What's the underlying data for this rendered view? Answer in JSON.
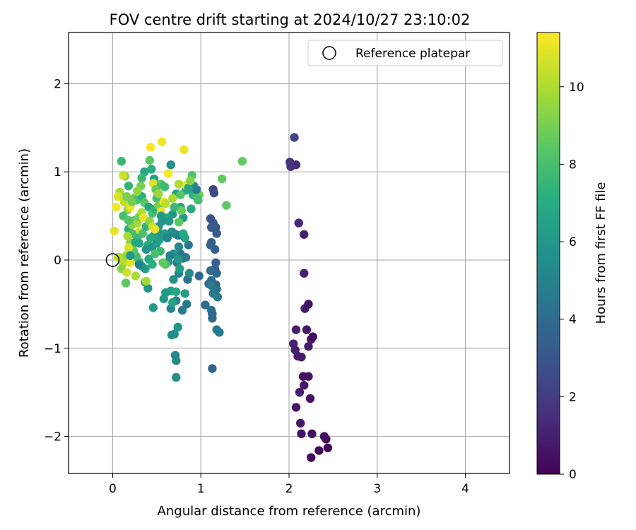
{
  "chart_data": {
    "type": "scatter",
    "title": "FOV centre drift starting at 2024/10/27 23:10:02",
    "xlabel": "Angular distance from reference (arcmin)",
    "ylabel": "Rotation from reference (arcmin)",
    "xlim": [
      -0.5,
      4.5
    ],
    "ylim": [
      -2.42,
      2.58
    ],
    "xticks": [
      0,
      1,
      2,
      3,
      4
    ],
    "xtick_labels": [
      "0",
      "1",
      "2",
      "3",
      "4"
    ],
    "yticks": [
      -2,
      -1,
      0,
      1,
      2
    ],
    "ytick_labels": [
      "−2",
      "−1",
      "0",
      "1",
      "2"
    ],
    "grid": true,
    "legend": {
      "placement": "top-right",
      "entries": [
        {
          "label": "Reference platepar",
          "marker": "open-circle"
        }
      ]
    },
    "reference_point": {
      "x": 0,
      "y": 0
    },
    "colorbar": {
      "label": "Hours from first FF file",
      "colormap": "viridis",
      "range": [
        0,
        11.4
      ],
      "ticks": [
        0,
        2,
        4,
        6,
        8,
        10
      ],
      "tick_labels": [
        "0",
        "2",
        "4",
        "6",
        "8",
        "10"
      ]
    },
    "points": [
      {
        "x": 2.44,
        "y": -2.13,
        "c": 0.1
      },
      {
        "x": 2.34,
        "y": -2.16,
        "c": 0.2
      },
      {
        "x": 2.42,
        "y": -2.03,
        "c": 0.3
      },
      {
        "x": 2.4,
        "y": -2.0,
        "c": 0.4
      },
      {
        "x": 2.25,
        "y": -2.24,
        "c": 0.3
      },
      {
        "x": 2.26,
        "y": -1.97,
        "c": 0.5
      },
      {
        "x": 2.14,
        "y": -1.97,
        "c": 0.6
      },
      {
        "x": 2.13,
        "y": -1.85,
        "c": 0.7
      },
      {
        "x": 2.08,
        "y": -1.67,
        "c": 0.6
      },
      {
        "x": 2.24,
        "y": -1.57,
        "c": 0.5
      },
      {
        "x": 2.12,
        "y": -1.5,
        "c": 0.8
      },
      {
        "x": 2.17,
        "y": -1.42,
        "c": 0.7
      },
      {
        "x": 2.22,
        "y": -1.32,
        "c": 0.6
      },
      {
        "x": 2.16,
        "y": -1.32,
        "c": 0.5
      },
      {
        "x": 2.14,
        "y": -1.1,
        "c": 0.9
      },
      {
        "x": 2.1,
        "y": -1.09,
        "c": 0.8
      },
      {
        "x": 2.07,
        "y": -1.02,
        "c": 1.0
      },
      {
        "x": 2.05,
        "y": -0.95,
        "c": 1.1
      },
      {
        "x": 2.22,
        "y": -0.98,
        "c": 0.9
      },
      {
        "x": 2.25,
        "y": -0.9,
        "c": 0.8
      },
      {
        "x": 2.27,
        "y": -0.87,
        "c": 0.4
      },
      {
        "x": 2.08,
        "y": -0.79,
        "c": 1.0
      },
      {
        "x": 2.2,
        "y": -0.79,
        "c": 0.7
      },
      {
        "x": 2.18,
        "y": -0.55,
        "c": 0.9
      },
      {
        "x": 2.22,
        "y": -0.5,
        "c": 0.6
      },
      {
        "x": 2.17,
        "y": -0.15,
        "c": 1.0
      },
      {
        "x": 2.17,
        "y": 0.29,
        "c": 1.1
      },
      {
        "x": 2.11,
        "y": 0.42,
        "c": 1.2
      },
      {
        "x": 2.08,
        "y": 1.08,
        "c": 1.4
      },
      {
        "x": 2.02,
        "y": 1.06,
        "c": 1.5
      },
      {
        "x": 2.01,
        "y": 1.11,
        "c": 1.6
      },
      {
        "x": 2.06,
        "y": 1.39,
        "c": 2.3
      },
      {
        "x": 1.14,
        "y": 0.8,
        "c": 2.4
      },
      {
        "x": 1.15,
        "y": 0.76,
        "c": 2.6
      },
      {
        "x": 1.11,
        "y": 0.47,
        "c": 2.8
      },
      {
        "x": 1.14,
        "y": 0.42,
        "c": 3.0
      },
      {
        "x": 1.17,
        "y": 0.37,
        "c": 3.1
      },
      {
        "x": 1.18,
        "y": 0.3,
        "c": 3.2
      },
      {
        "x": 1.12,
        "y": 0.37,
        "c": 3.3
      },
      {
        "x": 1.12,
        "y": 0.2,
        "c": 3.4
      },
      {
        "x": 1.11,
        "y": 0.17,
        "c": 3.5
      },
      {
        "x": 1.16,
        "y": 0.12,
        "c": 3.6
      },
      {
        "x": 1.17,
        "y": -0.03,
        "c": 3.7
      },
      {
        "x": 1.16,
        "y": -0.1,
        "c": 3.3
      },
      {
        "x": 1.18,
        "y": -0.15,
        "c": 3.8
      },
      {
        "x": 1.11,
        "y": -0.12,
        "c": 3.9
      },
      {
        "x": 1.09,
        "y": -0.27,
        "c": 4.0
      },
      {
        "x": 1.12,
        "y": -0.23,
        "c": 4.1
      },
      {
        "x": 1.17,
        "y": -0.28,
        "c": 3.6
      },
      {
        "x": 1.18,
        "y": -0.33,
        "c": 4.2
      },
      {
        "x": 1.14,
        "y": -0.38,
        "c": 4.3
      },
      {
        "x": 1.19,
        "y": -0.42,
        "c": 4.8
      },
      {
        "x": 1.12,
        "y": -0.29,
        "c": 4.6
      },
      {
        "x": 1.05,
        "y": -0.51,
        "c": 4.0
      },
      {
        "x": 1.12,
        "y": -0.57,
        "c": 4.2
      },
      {
        "x": 1.13,
        "y": -0.61,
        "c": 3.8
      },
      {
        "x": 1.13,
        "y": -0.66,
        "c": 3.9
      },
      {
        "x": 1.18,
        "y": -0.79,
        "c": 4.6
      },
      {
        "x": 1.21,
        "y": -0.82,
        "c": 4.8
      },
      {
        "x": 1.13,
        "y": -1.23,
        "c": 3.6
      },
      {
        "x": 0.98,
        "y": -0.18,
        "c": 3.8
      },
      {
        "x": 0.85,
        "y": -0.22,
        "c": 4.3
      },
      {
        "x": 0.84,
        "y": -0.5,
        "c": 4.6
      },
      {
        "x": 0.79,
        "y": -0.57,
        "c": 4.7
      },
      {
        "x": 0.72,
        "y": -0.46,
        "c": 4.9
      },
      {
        "x": 0.66,
        "y": -0.55,
        "c": 5.2
      },
      {
        "x": 0.67,
        "y": -0.85,
        "c": 5.5
      },
      {
        "x": 0.7,
        "y": -0.84,
        "c": 5.6
      },
      {
        "x": 0.74,
        "y": -0.76,
        "c": 6.0
      },
      {
        "x": 0.71,
        "y": -1.08,
        "c": 5.2
      },
      {
        "x": 0.72,
        "y": -1.14,
        "c": 5.4
      },
      {
        "x": 0.72,
        "y": -1.33,
        "c": 5.5
      },
      {
        "x": 0.46,
        "y": -0.54,
        "c": 6.2
      },
      {
        "x": 0.37,
        "y": -0.25,
        "c": 5.6
      },
      {
        "x": 0.4,
        "y": -0.32,
        "c": 5.8
      },
      {
        "x": 0.58,
        "y": -0.44,
        "c": 6.0
      },
      {
        "x": 0.66,
        "y": -0.35,
        "c": 6.4
      },
      {
        "x": 0.72,
        "y": -0.36,
        "c": 6.7
      },
      {
        "x": 0.69,
        "y": -0.22,
        "c": 5.8
      },
      {
        "x": 0.75,
        "y": -0.15,
        "c": 5.0
      },
      {
        "x": 0.73,
        "y": -0.03,
        "c": 4.5
      },
      {
        "x": 0.8,
        "y": 0.02,
        "c": 4.2
      },
      {
        "x": 0.77,
        "y": 0.07,
        "c": 4.4
      },
      {
        "x": 0.86,
        "y": 0.17,
        "c": 4.5
      },
      {
        "x": 0.83,
        "y": 0.03,
        "c": 4.8
      },
      {
        "x": 0.74,
        "y": 0.28,
        "c": 5.0
      },
      {
        "x": 0.7,
        "y": 0.3,
        "c": 5.2
      },
      {
        "x": 0.67,
        "y": 0.32,
        "c": 5.5
      },
      {
        "x": 0.69,
        "y": 0.07,
        "c": 5.8
      },
      {
        "x": 0.68,
        "y": 0.52,
        "c": 6.0
      },
      {
        "x": 0.8,
        "y": 0.48,
        "c": 6.2
      },
      {
        "x": 0.77,
        "y": 0.6,
        "c": 6.6
      },
      {
        "x": 0.89,
        "y": 0.58,
        "c": 6.9
      },
      {
        "x": 0.91,
        "y": 0.74,
        "c": 7.2
      },
      {
        "x": 0.95,
        "y": 0.72,
        "c": 7.5
      },
      {
        "x": 0.97,
        "y": 0.68,
        "c": 7.8
      },
      {
        "x": 0.9,
        "y": 0.96,
        "c": 8.2
      },
      {
        "x": 0.83,
        "y": 0.79,
        "c": 7.0
      },
      {
        "x": 0.66,
        "y": 1.08,
        "c": 5.8
      },
      {
        "x": 0.5,
        "y": 0.84,
        "c": 6.2
      },
      {
        "x": 0.47,
        "y": 0.92,
        "c": 6.5
      },
      {
        "x": 0.44,
        "y": 1.03,
        "c": 7.0
      },
      {
        "x": 0.42,
        "y": 1.13,
        "c": 8.5
      },
      {
        "x": 0.36,
        "y": 1.0,
        "c": 6.8
      },
      {
        "x": 0.33,
        "y": 0.93,
        "c": 7.6
      },
      {
        "x": 0.1,
        "y": 1.12,
        "c": 7.6
      },
      {
        "x": 0.14,
        "y": 0.95,
        "c": 9.3
      },
      {
        "x": 0.12,
        "y": 0.96,
        "c": 10.5
      },
      {
        "x": 0.18,
        "y": 0.84,
        "c": 7.4
      },
      {
        "x": 0.08,
        "y": 0.77,
        "c": 9.8
      },
      {
        "x": 0.06,
        "y": 0.72,
        "c": 10.8
      },
      {
        "x": 0.04,
        "y": 0.6,
        "c": 11.2
      },
      {
        "x": 0.13,
        "y": 0.66,
        "c": 10.3
      },
      {
        "x": 0.17,
        "y": 0.57,
        "c": 9.5
      },
      {
        "x": 0.2,
        "y": 0.6,
        "c": 11.1
      },
      {
        "x": 0.24,
        "y": 0.7,
        "c": 8.8
      },
      {
        "x": 0.27,
        "y": 0.68,
        "c": 8.0
      },
      {
        "x": 0.33,
        "y": 0.72,
        "c": 7.2
      },
      {
        "x": 0.36,
        "y": 0.65,
        "c": 8.4
      },
      {
        "x": 0.41,
        "y": 0.6,
        "c": 6.7
      },
      {
        "x": 0.45,
        "y": 0.53,
        "c": 8.0
      },
      {
        "x": 0.48,
        "y": 0.58,
        "c": 7.3
      },
      {
        "x": 0.5,
        "y": 0.7,
        "c": 7.9
      },
      {
        "x": 0.52,
        "y": 0.62,
        "c": 9.0
      },
      {
        "x": 0.55,
        "y": 0.55,
        "c": 11.0
      },
      {
        "x": 0.58,
        "y": 0.66,
        "c": 11.2
      },
      {
        "x": 0.6,
        "y": 0.64,
        "c": 10.2
      },
      {
        "x": 0.63,
        "y": 0.98,
        "c": 11.3
      },
      {
        "x": 0.56,
        "y": 1.34,
        "c": 11.2
      },
      {
        "x": 0.43,
        "y": 1.28,
        "c": 11.3
      },
      {
        "x": 0.81,
        "y": 1.25,
        "c": 11.1
      },
      {
        "x": 0.83,
        "y": 0.85,
        "c": 11.3
      },
      {
        "x": 0.75,
        "y": 0.86,
        "c": 10.0
      },
      {
        "x": 0.72,
        "y": 0.75,
        "c": 6.5
      },
      {
        "x": 0.77,
        "y": 0.74,
        "c": 8.3
      },
      {
        "x": 0.75,
        "y": 0.43,
        "c": 8.5
      },
      {
        "x": 0.78,
        "y": 0.56,
        "c": 8.8
      },
      {
        "x": 0.62,
        "y": 0.48,
        "c": 6.8
      },
      {
        "x": 0.64,
        "y": 0.44,
        "c": 6.0
      },
      {
        "x": 0.56,
        "y": 0.44,
        "c": 5.9
      },
      {
        "x": 0.55,
        "y": 0.5,
        "c": 6.1
      },
      {
        "x": 0.52,
        "y": 0.38,
        "c": 5.7
      },
      {
        "x": 0.49,
        "y": 0.33,
        "c": 5.5
      },
      {
        "x": 0.47,
        "y": 0.28,
        "c": 6.3
      },
      {
        "x": 0.43,
        "y": 0.25,
        "c": 6.9
      },
      {
        "x": 0.4,
        "y": 0.17,
        "c": 7.2
      },
      {
        "x": 0.38,
        "y": 0.12,
        "c": 6.0
      },
      {
        "x": 0.45,
        "y": 0.15,
        "c": 5.8
      },
      {
        "x": 0.5,
        "y": 0.19,
        "c": 6.2
      },
      {
        "x": 0.53,
        "y": 0.23,
        "c": 6.5
      },
      {
        "x": 0.56,
        "y": 0.29,
        "c": 5.9
      },
      {
        "x": 0.59,
        "y": 0.3,
        "c": 6.2
      },
      {
        "x": 0.62,
        "y": 0.25,
        "c": 5.1
      },
      {
        "x": 0.65,
        "y": 0.05,
        "c": 4.9
      },
      {
        "x": 0.63,
        "y": -0.02,
        "c": 5.6
      },
      {
        "x": 0.6,
        "y": -0.05,
        "c": 8.2
      },
      {
        "x": 0.57,
        "y": -0.03,
        "c": 8.6
      },
      {
        "x": 0.54,
        "y": 0.1,
        "c": 7.6
      },
      {
        "x": 0.48,
        "y": 0.07,
        "c": 8.0
      },
      {
        "x": 0.45,
        "y": -0.05,
        "c": 7.2
      },
      {
        "x": 0.41,
        "y": 0.01,
        "c": 6.9
      },
      {
        "x": 0.37,
        "y": -0.1,
        "c": 6.5
      },
      {
        "x": 0.33,
        "y": -0.07,
        "c": 6.0
      },
      {
        "x": 0.3,
        "y": -0.02,
        "c": 7.4
      },
      {
        "x": 0.27,
        "y": 0.04,
        "c": 7.8
      },
      {
        "x": 0.24,
        "y": 0.1,
        "c": 8.4
      },
      {
        "x": 0.22,
        "y": 0.16,
        "c": 8.8
      },
      {
        "x": 0.2,
        "y": 0.2,
        "c": 9.2
      },
      {
        "x": 0.18,
        "y": 0.14,
        "c": 10.7
      },
      {
        "x": 0.16,
        "y": 0.06,
        "c": 10.3
      },
      {
        "x": 0.14,
        "y": 0.03,
        "c": 9.6
      },
      {
        "x": 0.12,
        "y": -0.04,
        "c": 10.1
      },
      {
        "x": 0.1,
        "y": -0.1,
        "c": 9.3
      },
      {
        "x": 0.16,
        "y": -0.14,
        "c": 10.5
      },
      {
        "x": 0.15,
        "y": -0.26,
        "c": 8.5
      },
      {
        "x": 0.2,
        "y": -0.03,
        "c": 10.9
      },
      {
        "x": 0.08,
        "y": 0.03,
        "c": 9.9
      },
      {
        "x": 0.06,
        "y": 0.03,
        "c": 10.2
      },
      {
        "x": 0.02,
        "y": 0.33,
        "c": 11.0
      },
      {
        "x": 0.18,
        "y": 0.35,
        "c": 7.2
      },
      {
        "x": 0.22,
        "y": 0.4,
        "c": 9.2
      },
      {
        "x": 0.25,
        "y": 0.45,
        "c": 8.5
      },
      {
        "x": 0.28,
        "y": 0.42,
        "c": 9.7
      },
      {
        "x": 0.3,
        "y": 0.49,
        "c": 8.8
      },
      {
        "x": 0.33,
        "y": 0.54,
        "c": 10.0
      },
      {
        "x": 0.35,
        "y": 0.48,
        "c": 11.1
      },
      {
        "x": 0.3,
        "y": 0.32,
        "c": 10.8
      },
      {
        "x": 0.28,
        "y": 0.25,
        "c": 7.5
      },
      {
        "x": 0.26,
        "y": 0.2,
        "c": 7.0
      },
      {
        "x": 0.3,
        "y": 0.19,
        "c": 6.7
      },
      {
        "x": 0.34,
        "y": 0.3,
        "c": 8.1
      },
      {
        "x": 0.38,
        "y": 0.38,
        "c": 7.3
      },
      {
        "x": 0.42,
        "y": 0.44,
        "c": 9.4
      },
      {
        "x": 0.45,
        "y": 0.38,
        "c": 10.4
      },
      {
        "x": 0.48,
        "y": 0.35,
        "c": 11.0
      },
      {
        "x": 0.46,
        "y": 0.87,
        "c": 10.8
      },
      {
        "x": 0.49,
        "y": 0.8,
        "c": 8.7
      },
      {
        "x": 0.52,
        "y": 0.75,
        "c": 9.6
      },
      {
        "x": 0.55,
        "y": 0.86,
        "c": 8.1
      },
      {
        "x": 0.59,
        "y": 0.83,
        "c": 7.7
      },
      {
        "x": 0.32,
        "y": 0.84,
        "c": 9.0
      },
      {
        "x": 0.28,
        "y": 0.78,
        "c": 9.5
      },
      {
        "x": 0.22,
        "y": 0.66,
        "c": 8.9
      },
      {
        "x": 0.16,
        "y": 0.72,
        "c": 9.1
      },
      {
        "x": 0.12,
        "y": 0.5,
        "c": 7.9
      },
      {
        "x": 0.18,
        "y": 0.45,
        "c": 8.3
      },
      {
        "x": 0.22,
        "y": 0.3,
        "c": 7.9
      },
      {
        "x": 0.17,
        "y": 0.27,
        "c": 9.8
      },
      {
        "x": 0.2,
        "y": 0.05,
        "c": 6.1
      },
      {
        "x": 0.3,
        "y": -0.05,
        "c": 5.0
      },
      {
        "x": 0.26,
        "y": -0.18,
        "c": 9.9
      },
      {
        "x": 0.38,
        "y": -0.24,
        "c": 9.8
      },
      {
        "x": 1.24,
        "y": 0.92,
        "c": 8.6
      },
      {
        "x": 1.29,
        "y": 0.62,
        "c": 8.5
      },
      {
        "x": 1.47,
        "y": 1.12,
        "c": 8.6
      },
      {
        "x": 0.98,
        "y": 0.74,
        "c": 8.8
      },
      {
        "x": 0.96,
        "y": 0.7,
        "c": 7.9
      },
      {
        "x": 0.95,
        "y": 0.8,
        "c": 4.5
      },
      {
        "x": 0.92,
        "y": 0.84,
        "c": 5.3
      },
      {
        "x": 0.86,
        "y": 0.82,
        "c": 6.5
      },
      {
        "x": 0.88,
        "y": 0.9,
        "c": 9.3
      },
      {
        "x": 0.68,
        "y": 0.7,
        "c": 9.9
      },
      {
        "x": 0.7,
        "y": 0.6,
        "c": 7.6
      },
      {
        "x": 0.82,
        "y": 0.25,
        "c": 6.6
      },
      {
        "x": 0.8,
        "y": 0.3,
        "c": 6.9
      },
      {
        "x": 0.75,
        "y": 0.15,
        "c": 5.2
      },
      {
        "x": 0.74,
        "y": 0.01,
        "c": 6.1
      },
      {
        "x": 0.76,
        "y": -0.1,
        "c": 6.4
      },
      {
        "x": 0.87,
        "y": -0.15,
        "c": 5.5
      },
      {
        "x": 0.82,
        "y": -0.38,
        "c": 6.2
      },
      {
        "x": 0.68,
        "y": -0.48,
        "c": 6.5
      },
      {
        "x": 0.6,
        "y": -0.37,
        "c": 6.1
      }
    ]
  }
}
